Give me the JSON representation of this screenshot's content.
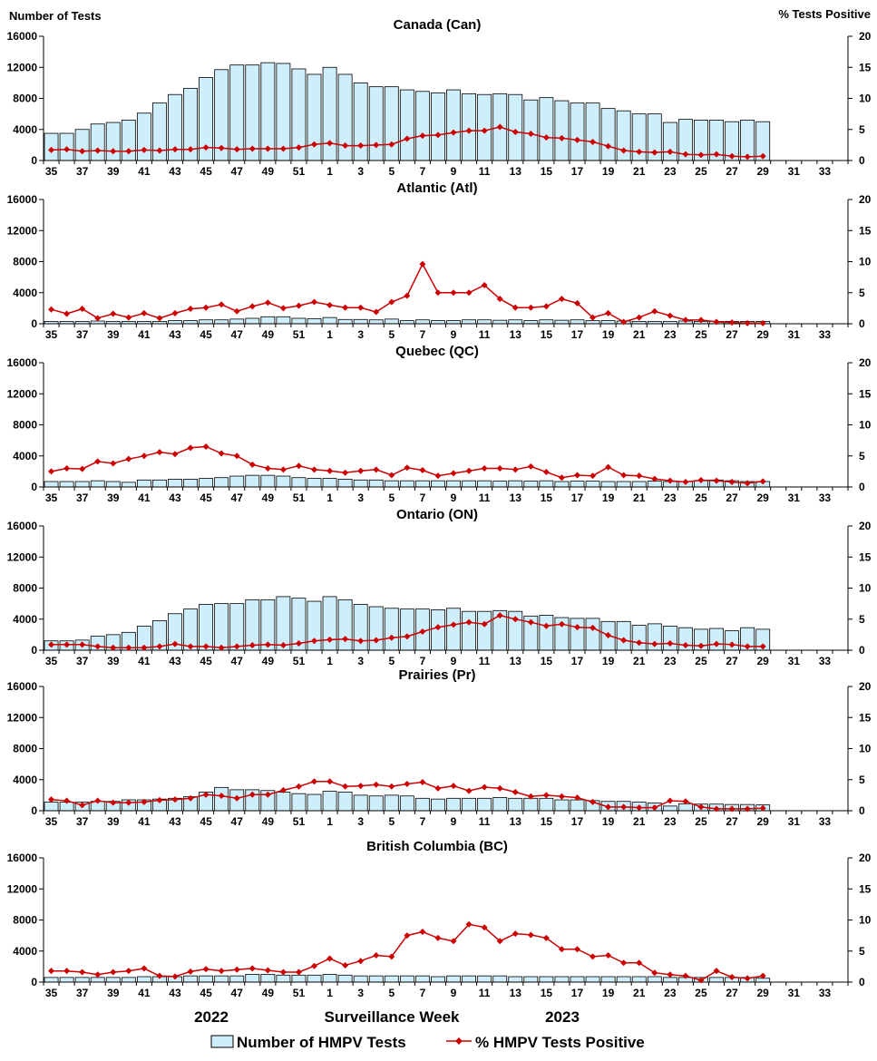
{
  "chart_data": {
    "type": "bar+line",
    "left_axis_label": "Number of Tests",
    "right_axis_label": "% Tests Positive",
    "year_labels": [
      "2022",
      "2023"
    ],
    "xlabel": "Surveillance Week",
    "legend": {
      "bars": "Number of HMPV Tests",
      "line": "% HMPV Tests Positive"
    },
    "colors": {
      "bar_fill": "#cfeefb",
      "bar_stroke": "#000000",
      "line": "#cc0000"
    },
    "left_axis": {
      "min": 0,
      "max": 16000,
      "ticks": [
        "0",
        "4000",
        "8000",
        "12000",
        "16000"
      ]
    },
    "right_axis": {
      "min": 0,
      "max": 20,
      "ticks": [
        "0",
        "5",
        "10",
        "15",
        "20"
      ]
    },
    "weeks": [
      35,
      36,
      37,
      38,
      39,
      40,
      41,
      42,
      43,
      44,
      45,
      46,
      47,
      48,
      49,
      50,
      51,
      52,
      1,
      2,
      3,
      4,
      5,
      6,
      7,
      8,
      9,
      10,
      11,
      12,
      13,
      14,
      15,
      16,
      17,
      18,
      19,
      20,
      21,
      22,
      23,
      24,
      25,
      26,
      27,
      28,
      29,
      30,
      31,
      32,
      33,
      34
    ],
    "tick_labels": [
      "35",
      "37",
      "39",
      "41",
      "43",
      "45",
      "47",
      "49",
      "51",
      "1",
      "3",
      "5",
      "7",
      "9",
      "11",
      "13",
      "15",
      "17",
      "19",
      "21",
      "23",
      "25",
      "27",
      "29",
      "31",
      "33"
    ],
    "panels": [
      {
        "title": "Canada (Can)",
        "tests": [
          3500,
          3500,
          4000,
          4700,
          4900,
          5200,
          6100,
          7400,
          8500,
          9300,
          10700,
          11700,
          12300,
          12300,
          12600,
          12500,
          11800,
          11100,
          12000,
          11100,
          10000,
          9500,
          9500,
          9100,
          8900,
          8700,
          9100,
          8600,
          8500,
          8600,
          8500,
          7800,
          8100,
          7700,
          7400,
          7400,
          6700,
          6400,
          6000,
          6000,
          4900,
          5300,
          5200,
          5200,
          5000,
          5200,
          5000
        ],
        "pct": [
          1.7,
          1.8,
          1.5,
          1.6,
          1.5,
          1.5,
          1.7,
          1.6,
          1.8,
          1.8,
          2.1,
          2.0,
          1.8,
          1.9,
          1.9,
          1.9,
          2.1,
          2.6,
          2.8,
          2.4,
          2.4,
          2.5,
          2.6,
          3.5,
          4.0,
          4.1,
          4.5,
          4.8,
          4.8,
          5.4,
          4.6,
          4.3,
          3.7,
          3.6,
          3.3,
          3.0,
          2.3,
          1.6,
          1.4,
          1.3,
          1.4,
          1.0,
          0.9,
          1.0,
          0.7,
          0.6,
          0.7
        ]
      },
      {
        "title": "Atlantic (Atl)",
        "tests": [
          300,
          300,
          300,
          350,
          300,
          300,
          300,
          300,
          400,
          400,
          500,
          500,
          600,
          700,
          900,
          900,
          700,
          650,
          800,
          550,
          550,
          500,
          600,
          400,
          500,
          400,
          400,
          500,
          500,
          450,
          500,
          400,
          500,
          450,
          500,
          400,
          400,
          350,
          300,
          300,
          300,
          350,
          300,
          300,
          300,
          300,
          300
        ],
        "pct": [
          2.3,
          1.6,
          2.4,
          0.9,
          1.6,
          1.0,
          1.7,
          0.9,
          1.7,
          2.4,
          2.6,
          3.1,
          2.0,
          2.8,
          3.4,
          2.5,
          2.9,
          3.5,
          3.0,
          2.6,
          2.6,
          1.9,
          3.5,
          4.5,
          9.6,
          5.0,
          5.0,
          5.0,
          6.2,
          4.0,
          2.6,
          2.6,
          2.8,
          4.0,
          3.3,
          1.0,
          1.7,
          0.3,
          1.0,
          2.0,
          1.3,
          0.6,
          0.6,
          0.3,
          0.2,
          0.1,
          0.1
        ]
      },
      {
        "title": "Quebec (QC)",
        "tests": [
          700,
          700,
          700,
          800,
          700,
          600,
          900,
          900,
          1000,
          1000,
          1100,
          1200,
          1400,
          1500,
          1500,
          1400,
          1200,
          1100,
          1100,
          1000,
          900,
          900,
          800,
          800,
          800,
          800,
          800,
          800,
          800,
          750,
          800,
          750,
          800,
          700,
          750,
          750,
          700,
          700,
          700,
          750,
          700,
          700,
          800,
          900,
          800,
          700,
          700
        ],
        "pct": [
          2.5,
          3.0,
          2.9,
          4.1,
          3.8,
          4.5,
          5.0,
          5.6,
          5.3,
          6.3,
          6.5,
          5.4,
          5.0,
          3.6,
          3.0,
          2.8,
          3.4,
          2.8,
          2.6,
          2.3,
          2.6,
          2.8,
          1.9,
          3.1,
          2.7,
          1.8,
          2.2,
          2.6,
          3.0,
          3.0,
          2.8,
          3.3,
          2.4,
          1.5,
          1.9,
          1.8,
          3.2,
          1.9,
          1.8,
          1.3,
          1.0,
          0.8,
          1.1,
          1.0,
          0.8,
          0.6,
          0.9
        ]
      },
      {
        "title": "Ontario (ON)",
        "tests": [
          1200,
          1200,
          1300,
          1800,
          2000,
          2300,
          3100,
          3800,
          4700,
          5300,
          5900,
          6000,
          6000,
          6500,
          6500,
          6900,
          6700,
          6300,
          6900,
          6500,
          5900,
          5600,
          5400,
          5300,
          5300,
          5200,
          5400,
          5000,
          5000,
          5100,
          5000,
          4400,
          4500,
          4200,
          4100,
          4100,
          3700,
          3700,
          3200,
          3400,
          3100,
          2900,
          2700,
          2800,
          2500,
          2900,
          2700
        ],
        "pct": [
          0.9,
          0.9,
          0.9,
          0.6,
          0.4,
          0.4,
          0.4,
          0.6,
          1.0,
          0.6,
          0.6,
          0.4,
          0.6,
          0.8,
          0.9,
          0.8,
          1.1,
          1.5,
          1.7,
          1.8,
          1.5,
          1.6,
          2.0,
          2.2,
          3.0,
          3.7,
          4.1,
          4.5,
          4.2,
          5.6,
          5.0,
          4.5,
          3.9,
          4.2,
          3.7,
          3.6,
          2.4,
          1.6,
          1.2,
          1.0,
          1.1,
          0.8,
          0.7,
          1.0,
          0.9,
          0.6,
          0.6
        ]
      },
      {
        "title": "Prairies (Pr)",
        "tests": [
          1100,
          1100,
          1100,
          1200,
          1200,
          1400,
          1400,
          1500,
          1600,
          1800,
          2400,
          3000,
          2700,
          2700,
          2600,
          2400,
          2200,
          2100,
          2500,
          2400,
          2000,
          1900,
          2000,
          1900,
          1600,
          1500,
          1600,
          1600,
          1600,
          1700,
          1600,
          1600,
          1600,
          1400,
          1400,
          1300,
          1200,
          1200,
          1100,
          1000,
          600,
          900,
          850,
          850,
          800,
          800,
          750
        ],
        "pct": [
          1.8,
          1.6,
          0.9,
          1.6,
          1.3,
          1.3,
          1.4,
          1.7,
          1.8,
          2.0,
          2.6,
          2.4,
          2.0,
          2.6,
          2.6,
          3.3,
          3.9,
          4.7,
          4.7,
          3.9,
          4.0,
          4.2,
          3.9,
          4.3,
          4.6,
          3.6,
          4.0,
          3.2,
          3.8,
          3.6,
          3.0,
          2.3,
          2.5,
          2.3,
          2.1,
          1.4,
          0.6,
          0.6,
          0.5,
          0.5,
          1.6,
          1.5,
          0.6,
          0.3,
          0.3,
          0.3,
          0.4
        ]
      },
      {
        "title": "British Columbia (BC)",
        "tests": [
          600,
          600,
          600,
          600,
          600,
          600,
          700,
          700,
          700,
          800,
          800,
          800,
          800,
          1000,
          1000,
          900,
          900,
          900,
          1000,
          900,
          800,
          800,
          800,
          800,
          800,
          700,
          800,
          800,
          800,
          800,
          700,
          700,
          700,
          700,
          700,
          700,
          700,
          700,
          700,
          700,
          600,
          600,
          600,
          600,
          600,
          600,
          500
        ],
        "pct": [
          1.8,
          1.8,
          1.6,
          1.2,
          1.6,
          1.8,
          2.2,
          1.0,
          0.9,
          1.7,
          2.1,
          1.8,
          2.0,
          2.2,
          1.9,
          1.6,
          1.6,
          2.6,
          3.8,
          2.7,
          3.4,
          4.3,
          4.1,
          7.5,
          8.1,
          7.1,
          6.6,
          9.3,
          8.8,
          6.6,
          7.8,
          7.6,
          7.1,
          5.3,
          5.3,
          4.1,
          4.3,
          3.1,
          3.1,
          1.5,
          1.2,
          1.0,
          0.3,
          1.8,
          0.8,
          0.6,
          1.0
        ]
      }
    ]
  }
}
